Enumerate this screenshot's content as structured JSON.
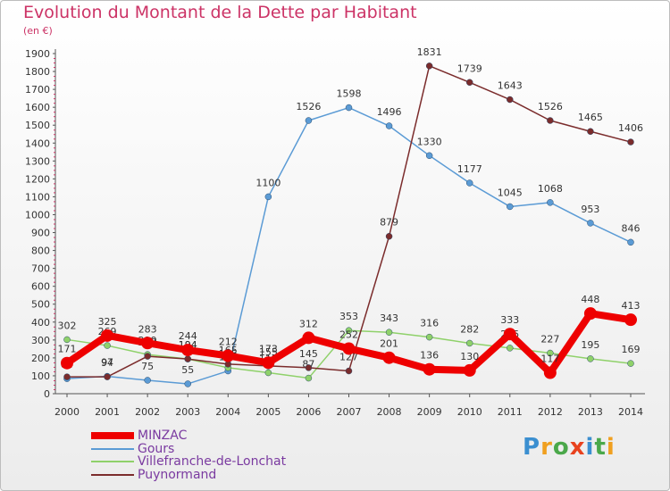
{
  "header": {
    "title": "Evolution du Montant de la Dette par Habitant",
    "unit": "(en €)"
  },
  "brand": {
    "letters": [
      "P",
      "r",
      "o",
      "x",
      "i",
      "t",
      "i"
    ],
    "colors": [
      "#3b8fd0",
      "#f0a020",
      "#4aa84a",
      "#e8421e",
      "#3b8fd0",
      "#4aa84a",
      "#f0a020"
    ]
  },
  "chart_data": {
    "type": "line",
    "x": [
      "2000",
      "2001",
      "2002",
      "2003",
      "2004",
      "2005",
      "2006",
      "2007",
      "2008",
      "2009",
      "2010",
      "2011",
      "2012",
      "2013",
      "2014"
    ],
    "ylim": [
      0,
      1900
    ],
    "yticks": [
      0,
      100,
      200,
      300,
      400,
      500,
      600,
      700,
      800,
      900,
      1000,
      1100,
      1200,
      1300,
      1400,
      1500,
      1600,
      1700,
      1800,
      1900
    ],
    "grid": false,
    "legend_position": "bottom-left",
    "series": [
      {
        "name": "MINZAC",
        "color": "#ee0000",
        "values": [
          171,
          325,
          283,
          244,
          212,
          173,
          312,
          252,
          201,
          136,
          130,
          333,
          117,
          448,
          413
        ],
        "labels": [
          "171",
          "325",
          "283",
          "244",
          "212",
          "173",
          "312",
          "252",
          "201",
          "136",
          "130",
          "333",
          "117",
          "448",
          "413"
        ]
      },
      {
        "name": "Gours",
        "color": "#5b9bd5",
        "values": [
          84,
          97,
          75,
          55,
          127,
          1100,
          1526,
          1598,
          1496,
          1330,
          1177,
          1045,
          1068,
          953,
          846
        ],
        "labels": [
          "84",
          "97",
          "75",
          "55",
          "127",
          "1100",
          "1526",
          "1598",
          "1496",
          "1330",
          "1177",
          "1045",
          "1068",
          "953",
          "846"
        ]
      },
      {
        "name": "Villefranche-de-Lonchat",
        "color": "#8fd16a",
        "values": [
          302,
          269,
          219,
          194,
          145,
          117,
          87,
          353,
          343,
          316,
          282,
          255,
          227,
          195,
          169
        ],
        "labels": [
          "302",
          "269",
          "219",
          "194",
          "145",
          "117",
          "87",
          "353",
          "343",
          "316",
          "282",
          "255",
          "227",
          "195",
          "169"
        ]
      },
      {
        "name": "Puynormand",
        "color": "#7b2c2c",
        "values": [
          94,
          94,
          209,
          194,
          165,
          155,
          145,
          127,
          879,
          1831,
          1739,
          1643,
          1526,
          1465,
          1406
        ],
        "labels": [
          "94",
          "94",
          "209",
          "194",
          "165",
          "155",
          "145",
          "127",
          "879",
          "1831",
          "1739",
          "1643",
          "1526",
          "1465",
          "1406"
        ]
      }
    ]
  }
}
